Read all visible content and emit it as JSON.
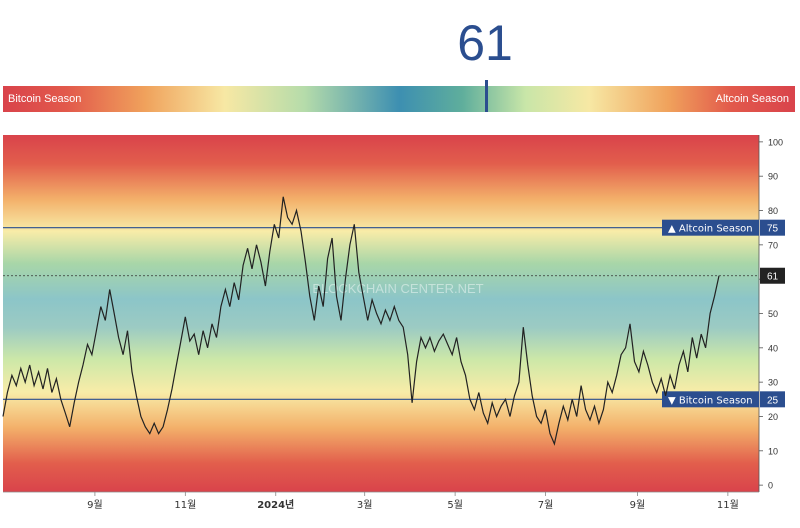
{
  "header": {
    "index_value": "61"
  },
  "gauge": {
    "left_label": "Bitcoin Season",
    "right_label": "Altcoin Season",
    "value": 61,
    "max": 100
  },
  "colors": {
    "line": "#222222",
    "threshold": "#2b4e8f",
    "label_bg": "#2b4e8f",
    "current_bg": "#222222",
    "top_red": "#d9434b",
    "mid_blue": "#5aa4c4"
  },
  "chart_data": {
    "type": "line",
    "ylim": [
      -2,
      102
    ],
    "yticks": [
      0,
      10,
      20,
      30,
      40,
      50,
      60,
      70,
      80,
      90,
      100
    ],
    "xticks": [
      "9월",
      "11월",
      "2024년",
      "3월",
      "5월",
      "7월",
      "9월",
      "11월"
    ],
    "xtick_days": [
      62,
      123,
      184,
      244,
      305,
      366,
      428,
      489
    ],
    "x_range": [
      0,
      510
    ],
    "watermark": "BLOCKCHAIN CENTER.NET",
    "thresholds": [
      {
        "value": 75,
        "label": "▲ Altcoin Season",
        "value_label": "75"
      },
      {
        "value": 25,
        "label": "▼ Bitcoin Season",
        "value_label": "25"
      }
    ],
    "current": {
      "value": 61,
      "label": "61"
    },
    "points": [
      [
        0,
        20
      ],
      [
        3,
        27
      ],
      [
        6,
        32
      ],
      [
        9,
        29
      ],
      [
        12,
        34
      ],
      [
        15,
        30
      ],
      [
        18,
        35
      ],
      [
        21,
        29
      ],
      [
        24,
        33
      ],
      [
        27,
        28
      ],
      [
        30,
        34
      ],
      [
        33,
        27
      ],
      [
        36,
        31
      ],
      [
        39,
        25
      ],
      [
        42,
        21
      ],
      [
        45,
        17
      ],
      [
        48,
        24
      ],
      [
        51,
        30
      ],
      [
        54,
        35
      ],
      [
        57,
        41
      ],
      [
        60,
        38
      ],
      [
        63,
        45
      ],
      [
        66,
        52
      ],
      [
        69,
        48
      ],
      [
        72,
        57
      ],
      [
        75,
        50
      ],
      [
        78,
        43
      ],
      [
        81,
        38
      ],
      [
        84,
        45
      ],
      [
        87,
        33
      ],
      [
        90,
        26
      ],
      [
        93,
        20
      ],
      [
        96,
        17
      ],
      [
        99,
        15
      ],
      [
        102,
        18
      ],
      [
        105,
        15
      ],
      [
        108,
        17
      ],
      [
        111,
        22
      ],
      [
        114,
        28
      ],
      [
        117,
        35
      ],
      [
        120,
        42
      ],
      [
        123,
        49
      ],
      [
        126,
        42
      ],
      [
        129,
        44
      ],
      [
        132,
        38
      ],
      [
        135,
        45
      ],
      [
        138,
        40
      ],
      [
        141,
        47
      ],
      [
        144,
        43
      ],
      [
        147,
        52
      ],
      [
        150,
        57
      ],
      [
        153,
        52
      ],
      [
        156,
        59
      ],
      [
        159,
        54
      ],
      [
        162,
        64
      ],
      [
        165,
        69
      ],
      [
        168,
        63
      ],
      [
        171,
        70
      ],
      [
        174,
        65
      ],
      [
        177,
        58
      ],
      [
        180,
        68
      ],
      [
        183,
        76
      ],
      [
        186,
        72
      ],
      [
        189,
        84
      ],
      [
        192,
        78
      ],
      [
        195,
        76
      ],
      [
        198,
        80
      ],
      [
        201,
        74
      ],
      [
        204,
        65
      ],
      [
        207,
        55
      ],
      [
        210,
        48
      ],
      [
        213,
        58
      ],
      [
        216,
        52
      ],
      [
        219,
        66
      ],
      [
        222,
        72
      ],
      [
        225,
        55
      ],
      [
        228,
        48
      ],
      [
        231,
        60
      ],
      [
        234,
        70
      ],
      [
        237,
        76
      ],
      [
        240,
        62
      ],
      [
        243,
        55
      ],
      [
        246,
        48
      ],
      [
        249,
        54
      ],
      [
        252,
        50
      ],
      [
        255,
        47
      ],
      [
        258,
        51
      ],
      [
        261,
        48
      ],
      [
        264,
        52
      ],
      [
        267,
        48
      ],
      [
        270,
        46
      ],
      [
        273,
        38
      ],
      [
        276,
        24
      ],
      [
        279,
        36
      ],
      [
        282,
        43
      ],
      [
        285,
        40
      ],
      [
        288,
        43
      ],
      [
        291,
        39
      ],
      [
        294,
        42
      ],
      [
        297,
        44
      ],
      [
        300,
        41
      ],
      [
        303,
        38
      ],
      [
        306,
        43
      ],
      [
        309,
        36
      ],
      [
        312,
        32
      ],
      [
        315,
        25
      ],
      [
        318,
        22
      ],
      [
        321,
        27
      ],
      [
        324,
        21
      ],
      [
        327,
        18
      ],
      [
        330,
        24
      ],
      [
        333,
        20
      ],
      [
        336,
        23
      ],
      [
        339,
        25
      ],
      [
        342,
        20
      ],
      [
        345,
        26
      ],
      [
        348,
        30
      ],
      [
        351,
        46
      ],
      [
        354,
        35
      ],
      [
        357,
        26
      ],
      [
        360,
        20
      ],
      [
        363,
        18
      ],
      [
        366,
        22
      ],
      [
        369,
        15
      ],
      [
        372,
        12
      ],
      [
        375,
        18
      ],
      [
        378,
        23
      ],
      [
        381,
        19
      ],
      [
        384,
        25
      ],
      [
        387,
        20
      ],
      [
        390,
        29
      ],
      [
        393,
        22
      ],
      [
        396,
        19
      ],
      [
        399,
        23
      ],
      [
        402,
        18
      ],
      [
        405,
        22
      ],
      [
        408,
        30
      ],
      [
        411,
        27
      ],
      [
        414,
        32
      ],
      [
        417,
        38
      ],
      [
        420,
        40
      ],
      [
        423,
        47
      ],
      [
        426,
        36
      ],
      [
        429,
        33
      ],
      [
        432,
        39
      ],
      [
        435,
        35
      ],
      [
        438,
        30
      ],
      [
        441,
        27
      ],
      [
        444,
        31
      ],
      [
        447,
        26
      ],
      [
        450,
        32
      ],
      [
        453,
        28
      ],
      [
        456,
        35
      ],
      [
        459,
        39
      ],
      [
        462,
        33
      ],
      [
        465,
        43
      ],
      [
        468,
        37
      ],
      [
        471,
        44
      ],
      [
        474,
        40
      ],
      [
        477,
        50
      ],
      [
        480,
        55
      ],
      [
        483,
        61
      ]
    ]
  }
}
